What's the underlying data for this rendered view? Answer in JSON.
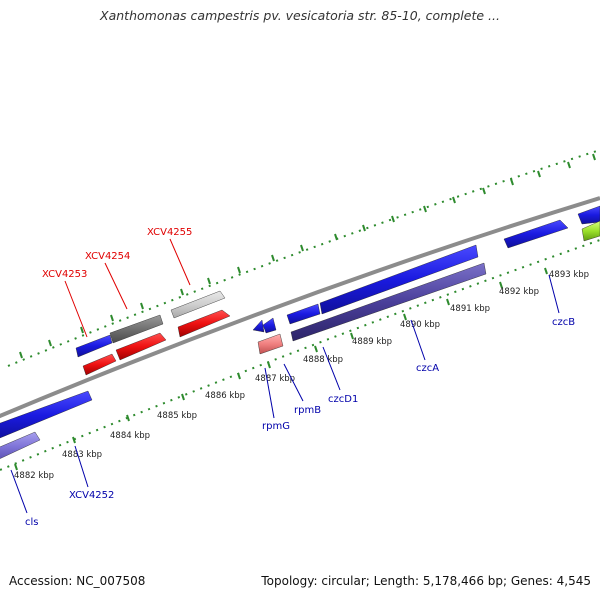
{
  "title": "Xanthomonas campestris pv. vesicatoria str. 85-10, complete ...",
  "footer": {
    "accession": "Accession: NC_007508",
    "stats": "Topology: circular; Length: 5,178,466 bp; Genes: 4,545"
  },
  "colors": {
    "background": "#ffffff",
    "backbone": "#8c8c8c",
    "tick": "#2e8b2e",
    "gene_blue": "#1f1fd6",
    "gene_red": "#ee1111",
    "gene_gray": "#a9a9a9",
    "gene_purple": "#4a3f9a",
    "label_red": "#e00000",
    "label_blue": "#0000aa"
  },
  "scale_labels": [
    "4882 kbp",
    "4883 kbp",
    "4884 kbp",
    "4885 kbp",
    "4886 kbp",
    "4887 kbp",
    "4888 kbp",
    "4889 kbp",
    "4890 kbp",
    "4891 kbp",
    "4892 kbp",
    "4893 kbp"
  ],
  "gene_labels": {
    "upper": [
      {
        "name": "XCV4253",
        "color": "red"
      },
      {
        "name": "XCV4254",
        "color": "red"
      },
      {
        "name": "XCV4255",
        "color": "red"
      }
    ],
    "lower": [
      {
        "name": "cls",
        "color": "blue"
      },
      {
        "name": "XCV4252",
        "color": "blue"
      },
      {
        "name": "rpmG",
        "color": "blue"
      },
      {
        "name": "rpmB",
        "color": "blue"
      },
      {
        "name": "czcD1",
        "color": "blue"
      },
      {
        "name": "czcA",
        "color": "blue"
      },
      {
        "name": "czcB",
        "color": "blue"
      }
    ]
  }
}
